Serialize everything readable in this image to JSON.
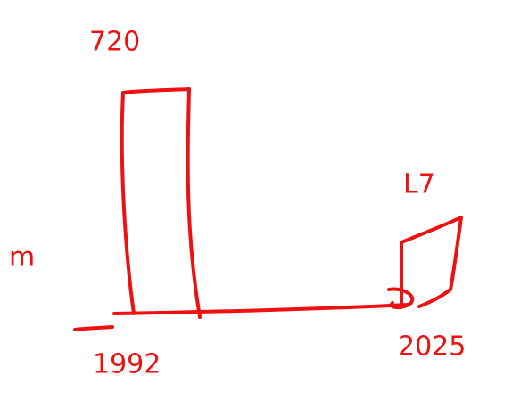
{
  "sketch": {
    "top_label": "720",
    "right_label": "L7",
    "y_label": "m",
    "left_category": "1992",
    "right_category": "2025"
  }
}
